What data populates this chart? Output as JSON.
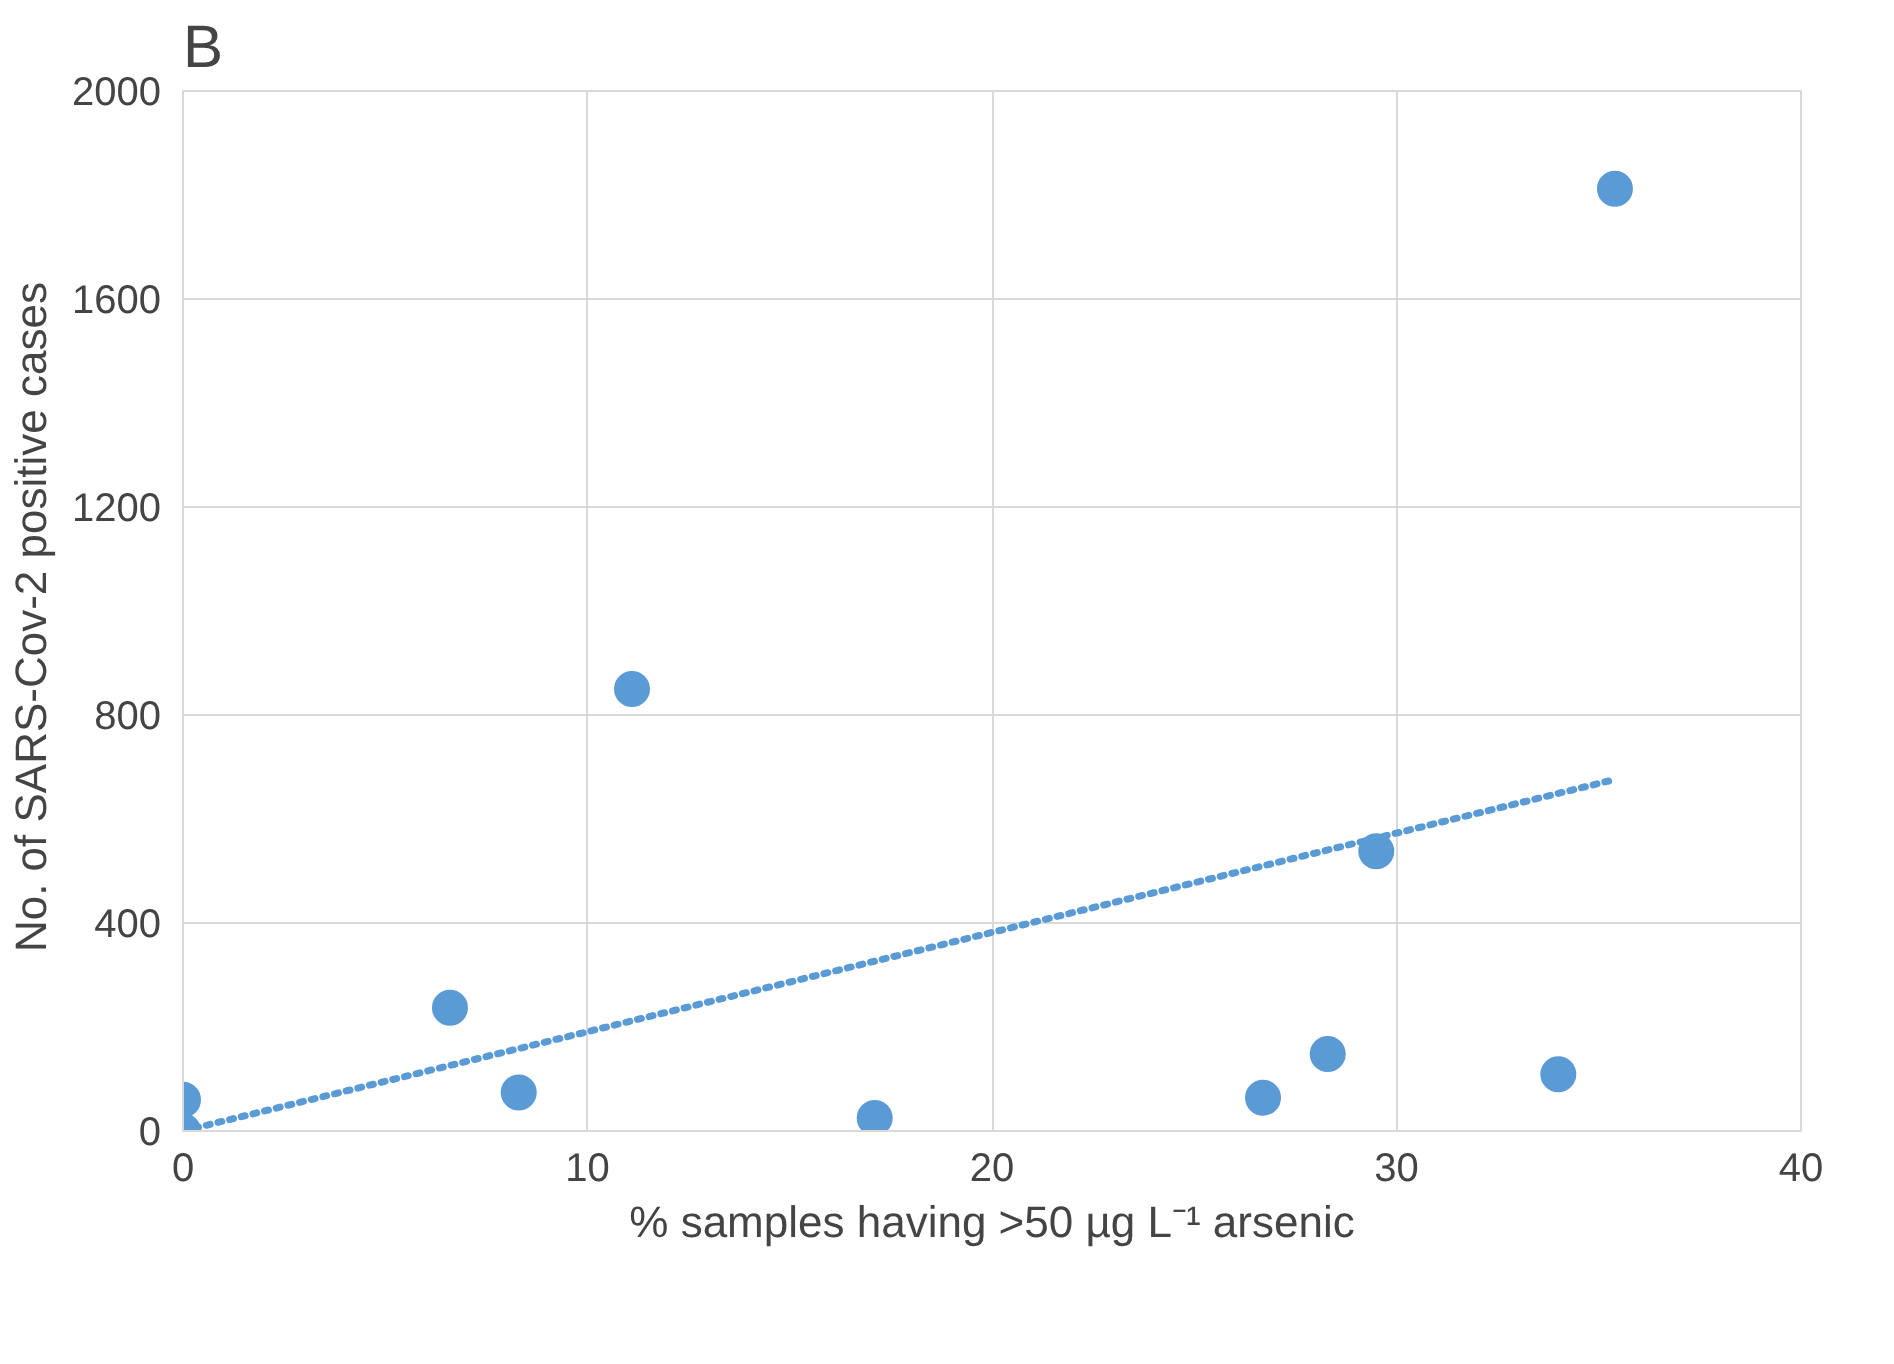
{
  "chart_data": {
    "type": "scatter",
    "title": "B",
    "xlabel": "% samples having >50 µg L⁻¹ arsenic",
    "ylabel": "No. of SARS-Cov-2  positive cases",
    "xlim": [
      0,
      40
    ],
    "xticks": [
      0,
      10,
      20,
      30,
      40
    ],
    "ylim": [
      0,
      2000
    ],
    "yticks": [
      0,
      400,
      800,
      1200,
      1600,
      2000
    ],
    "grid": true,
    "series": [
      {
        "color": "#5b9bd5",
        "marker": "circle",
        "x": [
          0,
          0,
          6.6,
          8.3,
          11.1,
          17.1,
          26.7,
          28.3,
          29.5,
          34.0,
          35.4
        ],
        "values": [
          60,
          0,
          237,
          74,
          850,
          25,
          64,
          148,
          538,
          109,
          1812
        ]
      },
      {
        "type": "line",
        "color": "#5b9bd5",
        "line_style": "dotted",
        "x": [
          0,
          35.4
        ],
        "values": [
          0,
          676
        ]
      }
    ]
  }
}
